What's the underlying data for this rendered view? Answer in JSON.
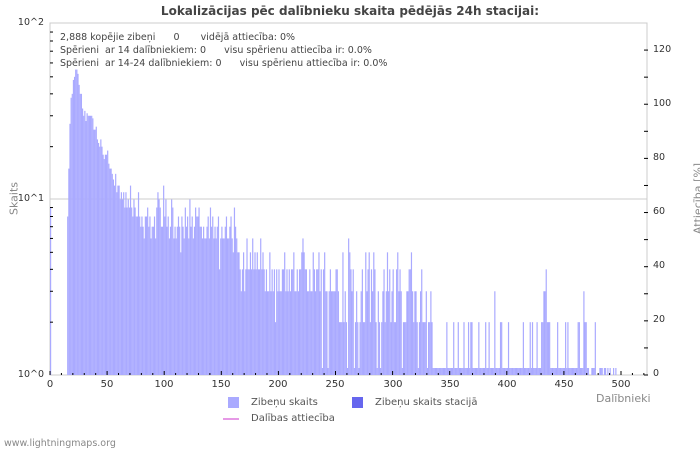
{
  "chart_data": {
    "type": "bar",
    "title": "Lokalizācijas pēc dalībnieku skaita pēdējās 24h stacijai:",
    "xlabel": "Dalībnieki",
    "ylabel": "Skaits",
    "y2label": "Attiecība [%]",
    "yscale": "log",
    "ylim": [
      1,
      100
    ],
    "y2lim": [
      0,
      130
    ],
    "xlim": [
      0,
      525
    ],
    "y_ticks": [
      "10^2",
      "10^1",
      "10^0"
    ],
    "y2_ticks": [
      "120",
      "100",
      "80",
      "60",
      "40",
      "20",
      "0"
    ],
    "x_ticks": [
      "0",
      "50",
      "100",
      "150",
      "200",
      "250",
      "300",
      "350",
      "400",
      "450",
      "500"
    ],
    "legend": [
      {
        "label": "Zibeņu skaits",
        "color": "#aaaaff",
        "kind": "box"
      },
      {
        "label": "Zibeņu skaits stacijā",
        "color": "#6666ee",
        "kind": "box"
      },
      {
        "label": "Dalības attiecība",
        "color": "#e699e6",
        "kind": "line"
      }
    ],
    "series": [
      {
        "name": "Zibeņu skaits",
        "x_start": 0,
        "values": [
          9,
          0,
          0,
          0,
          0,
          0,
          0,
          0,
          0,
          0,
          0,
          0,
          0,
          0,
          0,
          8,
          15,
          27,
          38,
          40,
          48,
          50,
          55,
          55,
          52,
          45,
          40,
          40,
          33,
          30,
          32,
          28,
          31,
          30,
          30,
          30,
          30,
          29,
          25,
          25,
          26,
          22,
          21,
          20,
          22,
          20,
          18,
          17,
          18,
          18,
          19,
          16,
          15,
          15,
          14,
          13,
          12,
          14,
          11,
          12,
          12,
          10,
          11,
          10,
          11,
          9,
          11,
          9,
          10,
          9,
          12,
          9,
          8,
          10,
          9,
          8,
          8,
          11,
          8,
          7,
          8,
          7,
          6,
          8,
          8,
          9,
          7,
          8,
          6,
          7,
          7,
          8,
          6,
          9,
          11,
          10,
          9,
          7,
          7,
          12,
          8,
          10,
          7,
          8,
          6,
          7,
          10,
          9,
          6,
          7,
          6,
          7,
          8,
          7,
          5,
          8,
          7,
          6,
          9,
          7,
          8,
          6,
          10,
          7,
          8,
          6,
          7,
          9,
          8,
          8,
          9,
          7,
          7,
          6,
          7,
          6,
          6,
          7,
          8,
          6,
          9,
          7,
          8,
          6,
          7,
          6,
          7,
          8,
          4,
          6,
          7,
          6,
          6,
          7,
          8,
          6,
          6,
          7,
          8,
          6,
          5,
          9,
          7,
          6,
          5,
          5,
          4,
          3,
          4,
          5,
          3,
          4,
          6,
          4,
          4,
          5,
          4,
          6,
          4,
          5,
          4,
          5,
          4,
          4,
          6,
          4,
          5,
          4,
          3,
          4,
          3,
          3,
          5,
          3,
          4,
          3,
          4,
          2,
          4,
          3,
          4,
          3,
          3,
          4,
          4,
          5,
          3,
          4,
          3,
          4,
          3,
          4,
          4,
          5,
          3,
          3,
          4,
          3,
          4,
          4,
          5,
          6,
          5,
          4,
          4,
          3,
          3,
          4,
          3,
          3,
          5,
          4,
          3,
          4,
          4,
          5,
          3,
          4,
          1,
          4,
          5,
          3,
          3,
          1,
          3,
          4,
          3,
          3,
          3,
          3,
          4,
          4,
          3,
          2,
          2,
          2,
          5,
          2,
          3,
          2,
          1,
          6,
          5,
          4,
          3,
          4,
          1,
          2,
          3,
          2,
          1,
          2,
          3,
          4,
          2,
          2,
          5,
          3,
          4,
          5,
          2,
          4,
          3,
          5,
          4,
          2,
          1,
          3,
          2,
          1,
          2,
          3,
          4,
          2,
          3,
          5,
          3,
          4,
          2,
          3,
          4,
          2,
          2,
          4,
          5,
          3,
          4,
          3,
          1,
          2,
          2,
          2,
          3,
          3,
          4,
          4,
          5,
          3,
          2,
          3,
          3,
          2,
          1,
          2,
          3,
          4,
          2,
          2,
          2,
          3,
          1,
          2,
          2,
          3,
          2,
          1,
          1,
          1,
          1,
          1,
          1,
          1,
          1,
          1,
          1,
          1,
          1,
          2,
          1,
          1,
          1,
          1,
          1,
          2,
          1,
          1,
          1,
          2,
          1,
          1,
          1,
          1,
          2,
          1,
          1,
          1,
          2,
          1,
          2,
          2,
          1,
          1,
          1,
          1,
          1,
          2,
          1,
          1,
          1,
          1,
          1,
          2,
          1,
          1,
          2,
          1,
          1,
          1,
          1,
          3,
          1,
          1,
          1,
          1,
          2,
          2,
          1,
          1,
          1,
          1,
          1,
          2,
          1,
          1,
          1,
          1,
          1,
          1,
          1,
          1,
          1,
          1,
          1,
          1,
          2,
          1,
          1,
          1,
          1,
          1,
          2,
          1,
          2,
          1,
          1,
          1,
          2,
          1,
          1,
          1,
          2,
          2,
          3,
          3,
          4,
          2,
          2,
          2,
          1,
          1,
          1,
          1,
          1,
          1,
          2,
          1,
          1,
          1,
          1,
          1,
          1,
          2,
          1,
          2,
          1,
          1,
          1,
          1,
          1,
          1,
          1,
          1,
          2,
          2,
          1,
          1,
          1,
          3,
          2,
          2,
          1,
          1,
          0,
          0,
          1,
          1,
          1,
          2,
          0,
          0,
          0,
          1,
          1,
          1,
          0,
          1,
          1,
          0,
          1,
          0,
          1,
          0,
          0,
          1,
          0,
          1,
          0,
          0,
          0,
          0,
          0,
          0,
          0,
          0
        ]
      },
      {
        "name": "Zibeņu skaits stacijā",
        "values": []
      },
      {
        "name": "Dalības attiecība",
        "values": []
      }
    ]
  },
  "stats": {
    "line1": "2,888 kopējie zibeņi      0       vidējā attiecība: 0%",
    "line2": "Spērieni  ar 14 dalībniekiem: 0      visu spērienu attiecība ir: 0.0%",
    "line3": "Spērieni  ar 14-24 dalībniekiem: 0      visu spērienu attiecība ir: 0.0%"
  },
  "footer": "www.lightningmaps.org"
}
